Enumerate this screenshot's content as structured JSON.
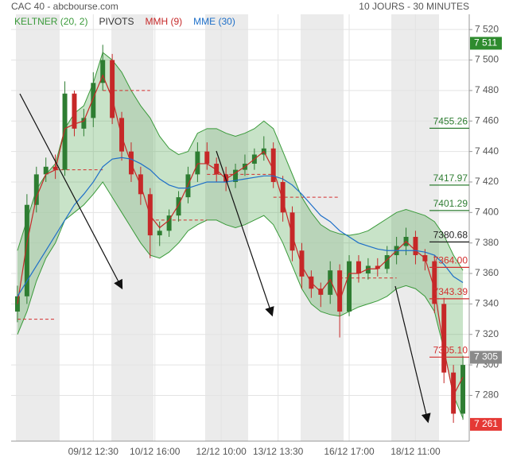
{
  "chart_data": {
    "type": "candlestick",
    "title": "CAC 40 - abcbourse.com",
    "period": "10 JOURS - 30 MINUTES",
    "x": [
      0,
      1,
      2,
      3,
      4,
      5,
      6,
      7,
      8,
      9,
      10,
      11,
      12,
      13,
      14,
      15,
      16,
      17,
      18,
      19,
      20,
      21,
      22,
      23,
      24,
      25,
      26,
      27,
      28,
      29,
      30,
      31,
      32,
      33,
      34,
      35,
      36,
      37,
      38,
      39,
      40,
      41,
      42,
      43,
      44,
      45,
      46,
      47
    ],
    "xlim": [
      -0.5,
      47.5
    ],
    "xticks": [
      {
        "value": 8,
        "label": "09/12 12:30"
      },
      {
        "value": 14.5,
        "label": "10/12 16:00"
      },
      {
        "value": 21.5,
        "label": "12/12 10:00"
      },
      {
        "value": 27.5,
        "label": "13/12 13:30"
      },
      {
        "value": 35,
        "label": "16/12 17:00"
      },
      {
        "value": 42,
        "label": "18/12 11:00"
      }
    ],
    "ylim": [
      7250,
      7530
    ],
    "yticks": [
      {
        "value": 7280,
        "label": "7 280"
      },
      {
        "value": 7300,
        "label": "7 300"
      },
      {
        "value": 7320,
        "label": "7 320"
      },
      {
        "value": 7340,
        "label": "7 340"
      },
      {
        "value": 7360,
        "label": "7 360"
      },
      {
        "value": 7380,
        "label": "7 380"
      },
      {
        "value": 7400,
        "label": "7 400"
      },
      {
        "value": 7420,
        "label": "7 420"
      },
      {
        "value": 7440,
        "label": "7 440"
      },
      {
        "value": 7460,
        "label": "7 460"
      },
      {
        "value": 7480,
        "label": "7 480"
      },
      {
        "value": 7500,
        "label": "7 500"
      },
      {
        "value": 7520,
        "label": "7 520"
      }
    ],
    "grid": true,
    "candles": {
      "up_color": "#2e7d32",
      "down_color": "#c62828",
      "open": [
        7335,
        7345,
        7405,
        7425,
        7430,
        7428,
        7478,
        7455,
        7462,
        7485,
        7500,
        7462,
        7440,
        7425,
        7412,
        7385,
        7388,
        7398,
        7410,
        7425,
        7440,
        7432,
        7425,
        7420,
        7428,
        7432,
        7438,
        7442,
        7420,
        7400,
        7375,
        7358,
        7350,
        7346,
        7362,
        7335,
        7368,
        7360,
        7365,
        7363,
        7372,
        7378,
        7384,
        7372,
        7368,
        7340,
        7295,
        7268
      ],
      "high": [
        7352,
        7412,
        7430,
        7436,
        7438,
        7486,
        7480,
        7468,
        7492,
        7510,
        7504,
        7466,
        7446,
        7430,
        7416,
        7394,
        7402,
        7414,
        7430,
        7446,
        7446,
        7436,
        7430,
        7432,
        7438,
        7442,
        7450,
        7446,
        7424,
        7404,
        7380,
        7362,
        7354,
        7368,
        7366,
        7372,
        7372,
        7370,
        7370,
        7378,
        7384,
        7390,
        7388,
        7376,
        7372,
        7344,
        7300,
        7306
      ],
      "low": [
        7328,
        7340,
        7400,
        7420,
        7422,
        7424,
        7450,
        7450,
        7456,
        7480,
        7458,
        7434,
        7420,
        7405,
        7370,
        7378,
        7384,
        7394,
        7406,
        7420,
        7428,
        7420,
        7414,
        7416,
        7424,
        7428,
        7434,
        7416,
        7394,
        7368,
        7350,
        7344,
        7338,
        7340,
        7318,
        7332,
        7354,
        7356,
        7358,
        7360,
        7366,
        7372,
        7366,
        7362,
        7334,
        7288,
        7262,
        7264
      ],
      "close": [
        7345,
        7405,
        7425,
        7430,
        7428,
        7478,
        7455,
        7462,
        7485,
        7500,
        7462,
        7440,
        7425,
        7412,
        7385,
        7388,
        7398,
        7410,
        7425,
        7440,
        7432,
        7425,
        7420,
        7428,
        7432,
        7438,
        7442,
        7420,
        7400,
        7375,
        7358,
        7350,
        7346,
        7362,
        7335,
        7368,
        7360,
        7365,
        7363,
        7372,
        7378,
        7384,
        7372,
        7368,
        7340,
        7295,
        7268,
        7300
      ]
    },
    "keltner": {
      "name": "KELTNER (20, 2)",
      "color": "#3a9a3a",
      "upper": [
        7375,
        7395,
        7415,
        7425,
        7432,
        7455,
        7465,
        7470,
        7485,
        7505,
        7500,
        7492,
        7480,
        7470,
        7462,
        7450,
        7442,
        7438,
        7440,
        7452,
        7455,
        7455,
        7452,
        7450,
        7452,
        7455,
        7460,
        7455,
        7440,
        7425,
        7410,
        7400,
        7392,
        7388,
        7386,
        7385,
        7386,
        7388,
        7392,
        7396,
        7400,
        7402,
        7400,
        7398,
        7394,
        7385,
        7372,
        7362
      ],
      "lower": [
        7320,
        7335,
        7355,
        7370,
        7380,
        7395,
        7400,
        7405,
        7412,
        7420,
        7410,
        7400,
        7390,
        7380,
        7372,
        7370,
        7374,
        7380,
        7388,
        7392,
        7395,
        7395,
        7392,
        7390,
        7392,
        7395,
        7398,
        7392,
        7380,
        7365,
        7350,
        7340,
        7335,
        7333,
        7332,
        7335,
        7338,
        7340,
        7342,
        7345,
        7350,
        7352,
        7350,
        7345,
        7335,
        7310,
        7280,
        7265
      ]
    },
    "pivots": {
      "name": "PIVOTS",
      "color": "#d32f2f",
      "levels": [
        {
          "value": 7330,
          "from": 0,
          "to": 4
        },
        {
          "value": 7428,
          "from": 4,
          "to": 9
        },
        {
          "value": 7480,
          "from": 9,
          "to": 14
        },
        {
          "value": 7395,
          "from": 14,
          "to": 20
        },
        {
          "value": 7425,
          "from": 20,
          "to": 27
        },
        {
          "value": 7410,
          "from": 27,
          "to": 34
        },
        {
          "value": 7357,
          "from": 34,
          "to": 40
        }
      ]
    },
    "lines": [
      {
        "name": "MMH (9)",
        "color": "#c62828",
        "values": [
          7340,
          7380,
          7410,
          7425,
          7428,
          7455,
          7458,
          7460,
          7475,
          7490,
          7475,
          7450,
          7432,
          7418,
          7398,
          7390,
          7395,
          7405,
          7418,
          7432,
          7432,
          7428,
          7422,
          7426,
          7430,
          7435,
          7440,
          7428,
          7408,
          7385,
          7365,
          7354,
          7348,
          7356,
          7342,
          7360,
          7360,
          7363,
          7363,
          7369,
          7375,
          7381,
          7375,
          7370,
          7350,
          7310,
          7280,
          7292
        ]
      },
      {
        "name": "MME (30)",
        "color": "#1e6fc8",
        "values": [
          7345,
          7355,
          7365,
          7375,
          7385,
          7395,
          7405,
          7412,
          7420,
          7430,
          7435,
          7436,
          7435,
          7432,
          7428,
          7422,
          7418,
          7416,
          7416,
          7418,
          7420,
          7420,
          7420,
          7421,
          7422,
          7423,
          7424,
          7424,
          7422,
          7418,
          7412,
          7405,
          7398,
          7394,
          7388,
          7384,
          7380,
          7378,
          7376,
          7375,
          7375,
          7375,
          7375,
          7374,
          7372,
          7366,
          7358,
          7354
        ]
      }
    ],
    "levels": [
      {
        "value": 7455.26,
        "color": "#2e7d32"
      },
      {
        "value": 7417.97,
        "color": "#2e7d32"
      },
      {
        "value": 7401.29,
        "color": "#2e7d32"
      },
      {
        "value": 7380.68,
        "color": "#222222"
      },
      {
        "value": {
          "value": 7364,
          "label": "7364.00"
        },
        "color": "#d32f2f"
      },
      {
        "value": 7343.39,
        "color": "#d32f2f"
      },
      {
        "value": {
          "value": 7305.1,
          "label": "7305.10"
        },
        "color": "#d32f2f"
      }
    ],
    "price_tags": [
      {
        "value": 7511,
        "label": "7 511",
        "color": "#2e8b2e"
      },
      {
        "value": 7305,
        "label": "7 305",
        "color": "#8a8a8a"
      },
      {
        "value": 7261,
        "label": "7 261",
        "color": "#e53935"
      }
    ]
  }
}
